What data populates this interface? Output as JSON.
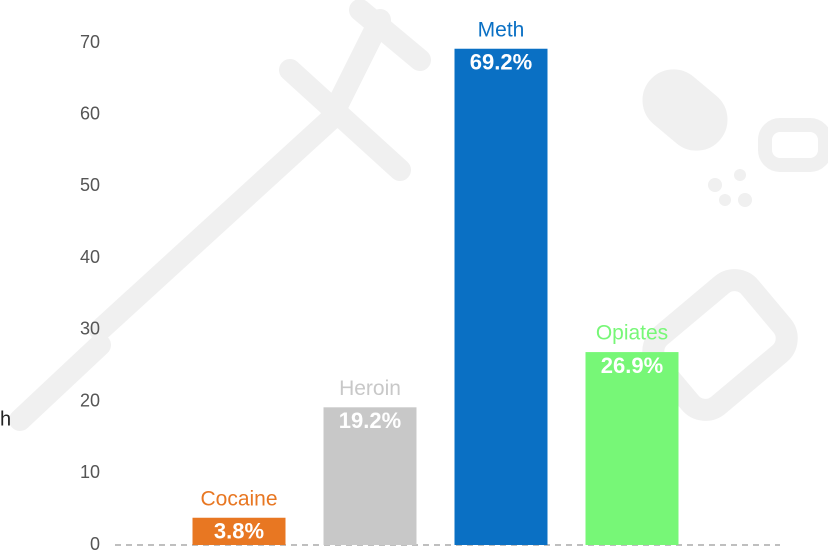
{
  "chart_data": {
    "type": "bar",
    "categories": [
      "Cocaine",
      "Heroin",
      "Meth",
      "Opiates"
    ],
    "values": [
      3.8,
      19.2,
      69.2,
      26.9
    ],
    "value_labels": [
      "3.8%",
      "19.2%",
      "69.2%",
      "26.9%"
    ],
    "colors": [
      "#e87722",
      "#c8c8c8",
      "#0a70c4",
      "#77f777"
    ],
    "ylim": [
      0,
      70
    ],
    "yticks": [
      0,
      10,
      20,
      30,
      40,
      50,
      60,
      70
    ],
    "grid": false,
    "side_text": "h"
  }
}
